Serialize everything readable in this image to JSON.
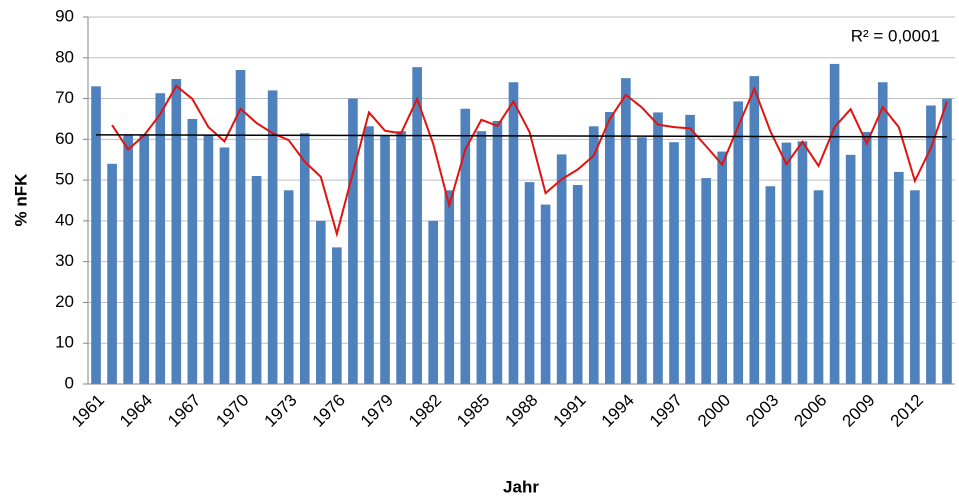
{
  "chart_data": {
    "type": "bar",
    "x_label": "Jahr",
    "y_label": "% nFK",
    "annotation": "R² = 0,0001",
    "categories": [
      "1961",
      null,
      null,
      "1964",
      null,
      null,
      "1967",
      null,
      null,
      "1970",
      null,
      null,
      "1973",
      null,
      null,
      "1976",
      null,
      null,
      "1979",
      null,
      null,
      "1982",
      null,
      null,
      "1985",
      null,
      null,
      "1988",
      null,
      null,
      "1991",
      null,
      null,
      "1994",
      null,
      null,
      "1997",
      null,
      null,
      "2000",
      null,
      null,
      "2003",
      null,
      null,
      "2006",
      null,
      null,
      "2009",
      null,
      null,
      "2012",
      null,
      null
    ],
    "values": [
      73,
      54,
      61,
      61,
      71.3,
      74.8,
      65,
      61,
      58,
      77,
      51,
      72,
      47.5,
      61.5,
      40,
      33.5,
      70,
      63.2,
      61,
      62,
      77.7,
      40,
      47.5,
      67.5,
      62,
      64.5,
      74,
      49.5,
      44,
      56.3,
      48.8,
      63.2,
      66.7,
      75,
      60.5,
      66.6,
      59.3,
      66,
      50.5,
      57,
      69.3,
      75.5,
      48.5,
      59.2,
      59.5,
      47.5,
      78.5,
      56.2,
      61.8,
      74,
      52,
      47.5,
      68.3,
      70
    ],
    "color": "#4f81bd",
    "moving_average": {
      "color": "#e3130f",
      "values": [
        null,
        63.5,
        57.5,
        61,
        66.2,
        73.1,
        69.9,
        63,
        59.5,
        67.5,
        64,
        61.5,
        59.8,
        54.5,
        50.8,
        36.8,
        51.8,
        66.6,
        62.1,
        61.5,
        69.9,
        58.9,
        43.8,
        57.5,
        64.8,
        63.3,
        69.3,
        61.8,
        46.8,
        50.2,
        52.6,
        56,
        65,
        70.9,
        67.8,
        63.6,
        63,
        62.7,
        58.3,
        53.8,
        63.2,
        72.4,
        62,
        53.9,
        59.4,
        53.5,
        63,
        67.4,
        59,
        67.9,
        63,
        49.8,
        57.9,
        69.2
      ]
    },
    "trend": {
      "color": "#000000",
      "start": 61.1,
      "end": 60.6
    },
    "ylim": [
      0,
      90
    ],
    "yticks": [
      0,
      10,
      20,
      30,
      40,
      50,
      60,
      70,
      80,
      90
    ],
    "grid": true
  }
}
